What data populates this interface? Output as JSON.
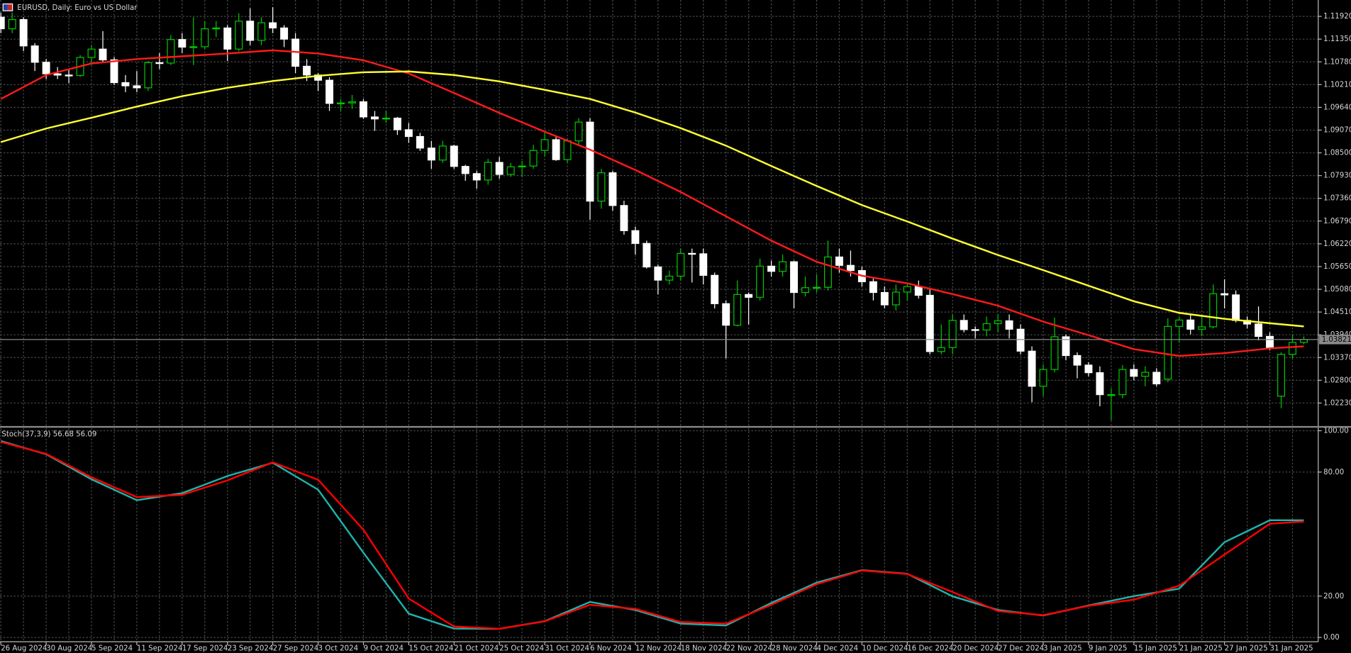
{
  "chart_data": [
    {
      "type": "candlestick",
      "title": "EURUSD, Daily: Euro vs US Dollar",
      "categories": [
        "26 Aug 2024",
        null,
        null,
        null,
        "30 Aug 2024",
        null,
        null,
        null,
        "5 Sep 2024",
        null,
        null,
        null,
        "11 Sep 2024",
        null,
        null,
        null,
        "17 Sep 2024",
        null,
        null,
        null,
        "23 Sep 2024",
        null,
        null,
        null,
        "27 Sep 2024",
        null,
        null,
        null,
        "3 Oct 2024",
        null,
        null,
        null,
        "9 Oct 2024",
        null,
        null,
        null,
        "15 Oct 2024",
        null,
        null,
        null,
        "21 Oct 2024",
        null,
        null,
        null,
        "25 Oct 2024",
        null,
        null,
        null,
        "31 Oct 2024",
        null,
        null,
        null,
        "6 Nov 2024",
        null,
        null,
        null,
        "12 Nov 2024",
        null,
        null,
        null,
        "18 Nov 2024",
        null,
        null,
        null,
        "22 Nov 2024",
        null,
        null,
        null,
        "28 Nov 2024",
        null,
        null,
        null,
        "4 Dec 2024",
        null,
        null,
        null,
        "10 Dec 2024",
        null,
        null,
        null,
        "16 Dec 2024",
        null,
        null,
        null,
        "20 Dec 2024",
        null,
        null,
        null,
        "27 Dec 2024",
        null,
        null,
        null,
        "3 Jan 2025",
        null,
        null,
        null,
        "9 Jan 2025",
        null,
        null,
        null,
        "15 Jan 2025",
        null,
        null,
        null,
        "21 Jan 2025",
        null,
        null,
        null,
        "27 Jan 2025",
        null,
        null,
        null,
        "31 Jan 2025",
        null,
        null,
        null
      ],
      "open": [
        1.119,
        1.1161,
        1.1184,
        1.1118,
        1.1077,
        1.1048,
        1.1045,
        1.1044,
        1.1089,
        1.111,
        1.1083,
        1.1026,
        1.1018,
        1.1013,
        1.1076,
        1.1075,
        1.1134,
        1.1115,
        1.1116,
        1.1161,
        1.1163,
        1.111,
        1.118,
        1.1132,
        1.1176,
        1.1163,
        1.1135,
        1.1067,
        1.1045,
        1.1032,
        1.0974,
        1.0975,
        1.0978,
        1.094,
        1.0935,
        1.0937,
        1.0908,
        1.0891,
        1.0862,
        1.0832,
        1.0867,
        1.0816,
        1.0798,
        1.0782,
        1.0826,
        1.0796,
        1.0815,
        1.0817,
        1.0856,
        1.0883,
        1.0833,
        1.088,
        1.0927,
        1.0729,
        1.08,
        1.0718,
        1.0655,
        1.0623,
        1.0564,
        1.0531,
        1.0541,
        1.0598,
        1.0597,
        1.0543,
        1.0472,
        1.0418,
        1.0495,
        1.0488,
        1.0566,
        1.0553,
        1.0577,
        1.05,
        1.0512,
        1.0513,
        1.0589,
        1.0568,
        1.0555,
        1.0527,
        1.05,
        1.0469,
        1.0501,
        1.0515,
        1.0493,
        1.0352,
        1.0362,
        1.043,
        1.0407,
        1.0406,
        1.0422,
        1.0429,
        1.0408,
        1.0353,
        1.0265,
        1.0307,
        1.0389,
        1.0342,
        1.0318,
        1.0299,
        1.0244,
        1.0244,
        1.0307,
        1.029,
        1.03,
        1.0283,
        1.0415,
        1.0431,
        1.0408,
        1.0414,
        1.0497,
        1.0494,
        1.043,
        1.0421,
        1.039,
        1.024,
        1.0345,
        1.0375
      ],
      "high": [
        1.1202,
        1.1202,
        1.119,
        1.1125,
        1.1085,
        1.1065,
        1.106,
        1.1095,
        1.112,
        1.1155,
        1.109,
        1.1045,
        1.1055,
        1.108,
        1.11,
        1.1145,
        1.115,
        1.119,
        1.118,
        1.118,
        1.117,
        1.12,
        1.1212,
        1.119,
        1.1215,
        1.117,
        1.115,
        1.1085,
        1.105,
        1.104,
        1.0985,
        1.0995,
        1.0985,
        1.0955,
        1.0955,
        1.094,
        1.0925,
        1.09,
        1.088,
        1.088,
        1.087,
        1.082,
        1.0805,
        1.0835,
        1.084,
        1.0825,
        1.083,
        1.087,
        1.0905,
        1.089,
        1.0885,
        1.0937,
        1.0937,
        1.081,
        1.0805,
        1.073,
        1.0665,
        1.063,
        1.057,
        1.0555,
        1.061,
        1.061,
        1.061,
        1.055,
        1.048,
        1.053,
        1.05,
        1.0585,
        1.058,
        1.0595,
        1.058,
        1.054,
        1.0545,
        1.063,
        1.061,
        1.0605,
        1.0565,
        1.0535,
        1.0515,
        1.052,
        1.0525,
        1.053,
        1.051,
        1.042,
        1.0445,
        1.0445,
        1.0415,
        1.044,
        1.0445,
        1.0445,
        1.042,
        1.0365,
        1.032,
        1.0437,
        1.0395,
        1.035,
        1.0325,
        1.0315,
        1.026,
        1.0318,
        1.032,
        1.0315,
        1.031,
        1.0435,
        1.044,
        1.0445,
        1.044,
        1.052,
        1.0533,
        1.0505,
        1.044,
        1.0465,
        1.04,
        1.035,
        1.0395,
        1.039
      ],
      "low": [
        1.115,
        1.115,
        1.1105,
        1.1055,
        1.1035,
        1.1035,
        1.1025,
        1.104,
        1.107,
        1.1075,
        1.102,
        1.1002,
        1.1002,
        1.1005,
        1.106,
        1.107,
        1.11,
        1.107,
        1.111,
        1.114,
        1.108,
        1.1105,
        1.112,
        1.112,
        1.115,
        1.1115,
        1.105,
        1.103,
        1.1005,
        1.0955,
        1.0955,
        1.096,
        1.0935,
        1.0905,
        1.0925,
        1.0895,
        1.0875,
        1.0855,
        1.081,
        1.0825,
        1.081,
        1.078,
        1.076,
        1.077,
        1.0785,
        1.079,
        1.079,
        1.081,
        1.084,
        1.083,
        1.0825,
        1.087,
        1.0682,
        1.071,
        1.0705,
        1.0645,
        1.0595,
        1.056,
        1.0495,
        1.052,
        1.053,
        1.0525,
        1.052,
        1.046,
        1.0335,
        1.0415,
        1.042,
        1.048,
        1.054,
        1.054,
        1.046,
        1.049,
        1.05,
        1.0505,
        1.055,
        1.054,
        1.0515,
        1.048,
        1.046,
        1.0455,
        1.048,
        1.0485,
        1.0345,
        1.0345,
        1.0345,
        1.04,
        1.0385,
        1.039,
        1.04,
        1.0385,
        1.0345,
        1.0225,
        1.024,
        1.03,
        1.033,
        1.0285,
        1.029,
        1.0215,
        1.018,
        1.0235,
        1.028,
        1.0265,
        1.0265,
        1.0275,
        1.0375,
        1.0395,
        1.039,
        1.041,
        1.046,
        1.0425,
        1.041,
        1.038,
        1.0355,
        1.021,
        1.0335,
        1.037
      ],
      "close": [
        1.1161,
        1.1184,
        1.1118,
        1.1077,
        1.1048,
        1.1045,
        1.1044,
        1.1089,
        1.111,
        1.1083,
        1.1026,
        1.1018,
        1.1013,
        1.1076,
        1.1075,
        1.1134,
        1.1115,
        1.1116,
        1.1161,
        1.1163,
        1.111,
        1.118,
        1.1132,
        1.1176,
        1.1163,
        1.1135,
        1.1067,
        1.1045,
        1.1032,
        1.0974,
        1.0975,
        1.0978,
        1.094,
        1.0935,
        1.0937,
        1.0908,
        1.0891,
        1.0862,
        1.0832,
        1.0867,
        1.0816,
        1.0798,
        1.0782,
        1.0826,
        1.0796,
        1.0815,
        1.0817,
        1.0856,
        1.0883,
        1.0833,
        1.088,
        1.0927,
        1.0729,
        1.08,
        1.0718,
        1.0655,
        1.0623,
        1.0564,
        1.0531,
        1.0541,
        1.0598,
        1.0597,
        1.0543,
        1.0472,
        1.0418,
        1.0495,
        1.0488,
        1.0566,
        1.0553,
        1.0577,
        1.05,
        1.0512,
        1.0513,
        1.0589,
        1.0568,
        1.0555,
        1.0527,
        1.05,
        1.0469,
        1.0501,
        1.0515,
        1.0493,
        1.0352,
        1.0362,
        1.043,
        1.0407,
        1.0406,
        1.0422,
        1.0429,
        1.0408,
        1.0353,
        1.0265,
        1.0307,
        1.0389,
        1.0342,
        1.0318,
        1.0299,
        1.0244,
        1.0244,
        1.0307,
        1.029,
        1.03,
        1.0271,
        1.0415,
        1.0431,
        1.0408,
        1.0414,
        1.0497,
        1.0494,
        1.043,
        1.0421,
        1.039,
        1.0362,
        1.0345,
        1.0375,
        1.03821
      ],
      "bull_color": "#00c800",
      "bear_color": "#ffffff",
      "lines": [
        {
          "color": "#ff1a1a",
          "x": [
            0,
            4,
            8,
            12,
            16,
            20,
            24,
            28,
            32,
            36,
            40,
            44,
            48,
            52,
            56,
            60,
            64,
            68,
            72,
            76,
            80,
            84,
            88,
            92,
            96,
            100,
            104,
            108,
            112,
            115
          ],
          "values": [
            1.0985,
            1.1045,
            1.1074,
            1.1085,
            1.1092,
            1.1099,
            1.1107,
            1.1099,
            1.1082,
            1.1049,
            1.1,
            1.095,
            1.0903,
            1.0858,
            1.0807,
            1.0752,
            1.0691,
            1.063,
            1.0577,
            1.0542,
            1.0523,
            1.0496,
            1.0467,
            1.0427,
            1.0393,
            1.0358,
            1.0341,
            1.0348,
            1.036,
            1.0365
          ]
        },
        {
          "color": "#ffff33",
          "x": [
            0,
            4,
            8,
            12,
            16,
            20,
            24,
            28,
            32,
            36,
            40,
            44,
            48,
            52,
            56,
            60,
            64,
            68,
            72,
            76,
            80,
            84,
            88,
            92,
            96,
            100,
            104,
            108,
            112,
            115
          ],
          "values": [
            1.0877,
            1.0911,
            1.0938,
            1.0966,
            1.0992,
            1.1013,
            1.103,
            1.1043,
            1.1052,
            1.1054,
            1.1045,
            1.1029,
            1.1008,
            1.0985,
            1.0951,
            1.0912,
            1.0868,
            1.0817,
            1.0767,
            1.0719,
            1.0678,
            1.0635,
            1.0594,
            1.0556,
            1.0517,
            1.0478,
            1.0449,
            1.0434,
            1.0423,
            1.0415
          ]
        }
      ],
      "ylim": [
        1.01665,
        1.1233
      ],
      "yticks": [
        {
          "value": 1.1192,
          "label": "1.11920"
        },
        {
          "value": 1.1135,
          "label": "1.11350"
        },
        {
          "value": 1.1078,
          "label": "1.10780"
        },
        {
          "value": 1.1021,
          "label": "1.10210"
        },
        {
          "value": 1.0964,
          "label": "1.09640"
        },
        {
          "value": 1.0907,
          "label": "1.09070"
        },
        {
          "value": 1.085,
          "label": "1.08500"
        },
        {
          "value": 1.0793,
          "label": "1.07930"
        },
        {
          "value": 1.0736,
          "label": "1.07360"
        },
        {
          "value": 1.0679,
          "label": "1.06790"
        },
        {
          "value": 1.0622,
          "label": "1.06220"
        },
        {
          "value": 1.0565,
          "label": "1.05650"
        },
        {
          "value": 1.0508,
          "label": "1.05080"
        },
        {
          "value": 1.0451,
          "label": "1.04510"
        },
        {
          "value": 1.0394,
          "label": "1.03940"
        },
        {
          "value": 1.0337,
          "label": "1.03370"
        },
        {
          "value": 1.028,
          "label": "1.02800"
        },
        {
          "value": 1.0223,
          "label": "1.02230"
        }
      ],
      "current_price": 1.03821,
      "grid": true
    },
    {
      "type": "line",
      "title": "Stoch(37,3,9) 56.68 56.09",
      "x": [
        0,
        4,
        8,
        12,
        16,
        20,
        24,
        28,
        32,
        36,
        40,
        44,
        48,
        52,
        56,
        60,
        64,
        68,
        72,
        76,
        80,
        84,
        88,
        92,
        96,
        100,
        104,
        108,
        112,
        115
      ],
      "series": [
        {
          "color": "#20b2aa",
          "values": [
            95.0,
            88.6,
            76.5,
            66.4,
            69.8,
            78.1,
            84.5,
            71.5,
            41.0,
            11.5,
            4.3,
            4.2,
            7.9,
            17.2,
            13.3,
            6.7,
            5.8,
            16.7,
            26.5,
            32.6,
            30.8,
            19.9,
            13.3,
            10.6,
            15.5,
            20.0,
            23.6,
            46.1,
            56.7,
            56.68
          ]
        },
        {
          "color": "#ff0000",
          "values": [
            94.6,
            88.8,
            77.5,
            67.9,
            69.0,
            76.0,
            84.7,
            76.3,
            52.1,
            18.8,
            5.3,
            4.2,
            7.8,
            15.8,
            13.8,
            7.5,
            6.7,
            15.8,
            25.8,
            32.4,
            30.7,
            22.0,
            12.8,
            10.8,
            15.3,
            18.3,
            25.0,
            40.1,
            55.0,
            56.09
          ]
        }
      ],
      "ylim": [
        -2.08,
        101.25
      ],
      "yticks": [
        {
          "value": 100,
          "label": "100.00"
        },
        {
          "value": 80,
          "label": "80.00"
        },
        {
          "value": 20,
          "label": "20.00"
        },
        {
          "value": 0,
          "label": "0.00"
        }
      ],
      "grid": true
    }
  ]
}
